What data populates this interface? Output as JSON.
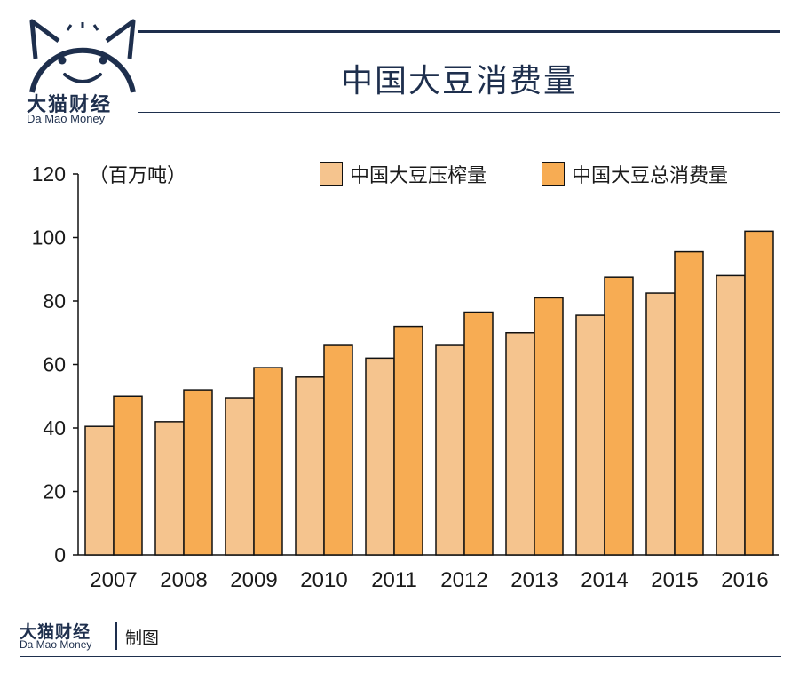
{
  "header": {
    "logo_name": "大猫财经",
    "logo_sub": "Da  Mao Money",
    "title": "中国大豆消费量"
  },
  "footer": {
    "logo_name": "大猫财经",
    "logo_sub": "Da Mao Money",
    "credit": "制图"
  },
  "colors": {
    "navy": "#1e2f4d",
    "series1": "#f5c48e",
    "series2": "#f7ac53"
  },
  "chart_data": {
    "type": "bar",
    "title": "中国大豆消费量",
    "unit_label": "（百万吨）",
    "xlabel": "",
    "ylabel": "",
    "ylim": [
      0,
      120
    ],
    "yticks": [
      0,
      20,
      40,
      60,
      80,
      100,
      120
    ],
    "categories": [
      "2007",
      "2008",
      "2009",
      "2010",
      "2011",
      "2012",
      "2013",
      "2014",
      "2015",
      "2016"
    ],
    "series": [
      {
        "name": "中国大豆压榨量",
        "color": "#f5c48e",
        "values": [
          40.5,
          42,
          49.5,
          56,
          62,
          66,
          70,
          75.5,
          82.5,
          88
        ]
      },
      {
        "name": "中国大豆总消费量",
        "color": "#f7ac53",
        "values": [
          50,
          52,
          59,
          66,
          72,
          76.5,
          81,
          87.5,
          95.5,
          102
        ]
      }
    ],
    "legend": "top-right",
    "grid": false
  }
}
